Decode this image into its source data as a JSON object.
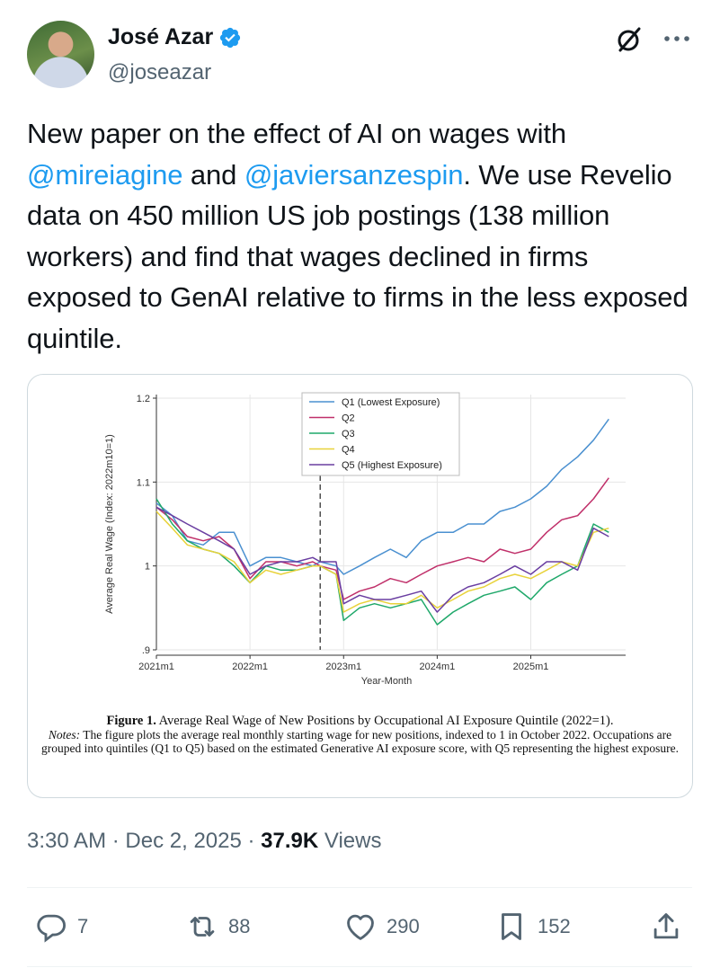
{
  "author": {
    "display_name": "José Azar",
    "handle": "@joseazar",
    "verified": true
  },
  "icons": {
    "verified": "verified-badge-icon",
    "grok": "grok-icon",
    "more": "more-options-icon",
    "reply": "reply-icon",
    "repost": "repost-icon",
    "like": "like-icon",
    "bookmark": "bookmark-icon",
    "share": "share-icon"
  },
  "colors": {
    "accent": "#1d9bf0",
    "muted": "#536471",
    "text": "#0f1419"
  },
  "tweet": {
    "text_1": "New paper on the effect of AI on wages with ",
    "mention_1": "@mireiagine",
    "text_2": " and ",
    "mention_2": "@javiersanzespin",
    "text_3": ". We use Revelio data on 450 million US job postings (138 million workers) and find that wages declined in firms exposed to GenAI relative to firms in the less exposed quintile."
  },
  "chart_data": {
    "type": "line",
    "ylabel": "Average Real Wage (Index: 2022m10=1)",
    "xlabel": "Year-Month",
    "xlim": [
      2021.0,
      2025.917
    ],
    "ylim": [
      0.9,
      1.2
    ],
    "x_ticks": [
      2021.0,
      2022.0,
      2023.0,
      2024.0,
      2025.0
    ],
    "x_tick_labels": [
      "2021m1",
      "2022m1",
      "2023m1",
      "2024m1",
      "2025m1"
    ],
    "y_ticks": [
      0.9,
      1.0,
      1.1,
      1.2
    ],
    "y_tick_labels": [
      ".9",
      "1",
      "1.1",
      "1.2"
    ],
    "reference_line_x": 2022.75,
    "legend_position": "top",
    "series": [
      {
        "name": "Q1 (Lowest Exposure)",
        "color": "#4a90d0",
        "x": [
          2021.0,
          2021.17,
          2021.33,
          2021.5,
          2021.67,
          2021.83,
          2022.0,
          2022.17,
          2022.33,
          2022.5,
          2022.67,
          2022.75,
          2022.92,
          2023.0,
          2023.17,
          2023.33,
          2023.5,
          2023.67,
          2023.83,
          2024.0,
          2024.17,
          2024.33,
          2024.5,
          2024.67,
          2024.83,
          2025.0,
          2025.17,
          2025.33,
          2025.5,
          2025.67,
          2025.833
        ],
        "values": [
          1.075,
          1.06,
          1.03,
          1.025,
          1.04,
          1.04,
          1.0,
          1.01,
          1.01,
          1.005,
          1.0,
          1.005,
          1.0,
          0.99,
          1.0,
          1.01,
          1.02,
          1.01,
          1.03,
          1.04,
          1.04,
          1.05,
          1.05,
          1.065,
          1.07,
          1.08,
          1.095,
          1.115,
          1.13,
          1.15,
          1.175
        ]
      },
      {
        "name": "Q2",
        "color": "#c0306a",
        "x": [
          2021.0,
          2021.17,
          2021.33,
          2021.5,
          2021.67,
          2021.83,
          2022.0,
          2022.17,
          2022.33,
          2022.5,
          2022.67,
          2022.75,
          2022.92,
          2023.0,
          2023.17,
          2023.33,
          2023.5,
          2023.67,
          2023.83,
          2024.0,
          2024.17,
          2024.33,
          2024.5,
          2024.67,
          2024.83,
          2025.0,
          2025.17,
          2025.33,
          2025.5,
          2025.67,
          2025.833
        ],
        "values": [
          1.07,
          1.055,
          1.035,
          1.03,
          1.035,
          1.02,
          0.985,
          1.005,
          1.005,
          1.0,
          1.005,
          1.0,
          0.995,
          0.96,
          0.97,
          0.975,
          0.985,
          0.98,
          0.99,
          1.0,
          1.005,
          1.01,
          1.005,
          1.02,
          1.015,
          1.02,
          1.04,
          1.055,
          1.06,
          1.08,
          1.105
        ]
      },
      {
        "name": "Q3",
        "color": "#1fa86a",
        "x": [
          2021.0,
          2021.17,
          2021.33,
          2021.5,
          2021.67,
          2021.83,
          2022.0,
          2022.17,
          2022.33,
          2022.5,
          2022.67,
          2022.75,
          2022.92,
          2023.0,
          2023.17,
          2023.33,
          2023.5,
          2023.67,
          2023.83,
          2024.0,
          2024.17,
          2024.33,
          2024.5,
          2024.67,
          2024.83,
          2025.0,
          2025.17,
          2025.33,
          2025.5,
          2025.67,
          2025.833
        ],
        "values": [
          1.08,
          1.05,
          1.03,
          1.02,
          1.015,
          1.0,
          0.98,
          1.0,
          0.995,
          0.995,
          1.0,
          1.0,
          0.99,
          0.935,
          0.95,
          0.955,
          0.95,
          0.955,
          0.96,
          0.93,
          0.945,
          0.955,
          0.965,
          0.97,
          0.975,
          0.96,
          0.98,
          0.99,
          1.0,
          1.05,
          1.04
        ]
      },
      {
        "name": "Q4",
        "color": "#e8d23a",
        "x": [
          2021.0,
          2021.17,
          2021.33,
          2021.5,
          2021.67,
          2021.83,
          2022.0,
          2022.17,
          2022.33,
          2022.5,
          2022.67,
          2022.75,
          2022.92,
          2023.0,
          2023.17,
          2023.33,
          2023.5,
          2023.67,
          2023.83,
          2024.0,
          2024.17,
          2024.33,
          2024.5,
          2024.67,
          2024.83,
          2025.0,
          2025.17,
          2025.33,
          2025.5,
          2025.67,
          2025.833
        ],
        "values": [
          1.065,
          1.045,
          1.025,
          1.02,
          1.015,
          1.005,
          0.98,
          0.995,
          0.99,
          0.995,
          1.0,
          1.0,
          0.99,
          0.945,
          0.955,
          0.96,
          0.955,
          0.955,
          0.965,
          0.95,
          0.96,
          0.97,
          0.975,
          0.985,
          0.99,
          0.985,
          0.995,
          1.005,
          1.0,
          1.04,
          1.045
        ]
      },
      {
        "name": "Q5 (Highest Exposure)",
        "color": "#6a3ea1",
        "x": [
          2021.0,
          2021.17,
          2021.33,
          2021.5,
          2021.67,
          2021.83,
          2022.0,
          2022.17,
          2022.33,
          2022.5,
          2022.67,
          2022.75,
          2022.92,
          2023.0,
          2023.17,
          2023.33,
          2023.5,
          2023.67,
          2023.83,
          2024.0,
          2024.17,
          2024.33,
          2024.5,
          2024.67,
          2024.83,
          2025.0,
          2025.17,
          2025.33,
          2025.5,
          2025.67,
          2025.833
        ],
        "values": [
          1.07,
          1.06,
          1.05,
          1.04,
          1.03,
          1.02,
          0.99,
          1.0,
          1.005,
          1.005,
          1.01,
          1.005,
          1.005,
          0.955,
          0.965,
          0.96,
          0.96,
          0.965,
          0.97,
          0.945,
          0.965,
          0.975,
          0.98,
          0.99,
          1.0,
          0.99,
          1.005,
          1.005,
          0.995,
          1.045,
          1.035
        ]
      }
    ]
  },
  "figure_caption": {
    "title_bold": "Figure 1.",
    "title_rest": " Average Real Wage of New Positions by Occupational AI Exposure Quintile (2022=1).",
    "notes_label": "Notes:",
    "notes_text": " The figure plots the average real monthly starting wage for new positions, indexed to 1 in October 2022. Occupations are grouped into quintiles (Q1 to Q5) based on the estimated Generative AI exposure score, with Q5 representing the highest exposure."
  },
  "meta": {
    "time": "3:30 AM",
    "separator": "·",
    "date": "Dec 2, 2025",
    "views_count": "37.9K",
    "views_label": "Views"
  },
  "actions": {
    "replies": "7",
    "reposts": "88",
    "likes": "290",
    "bookmarks": "152"
  }
}
